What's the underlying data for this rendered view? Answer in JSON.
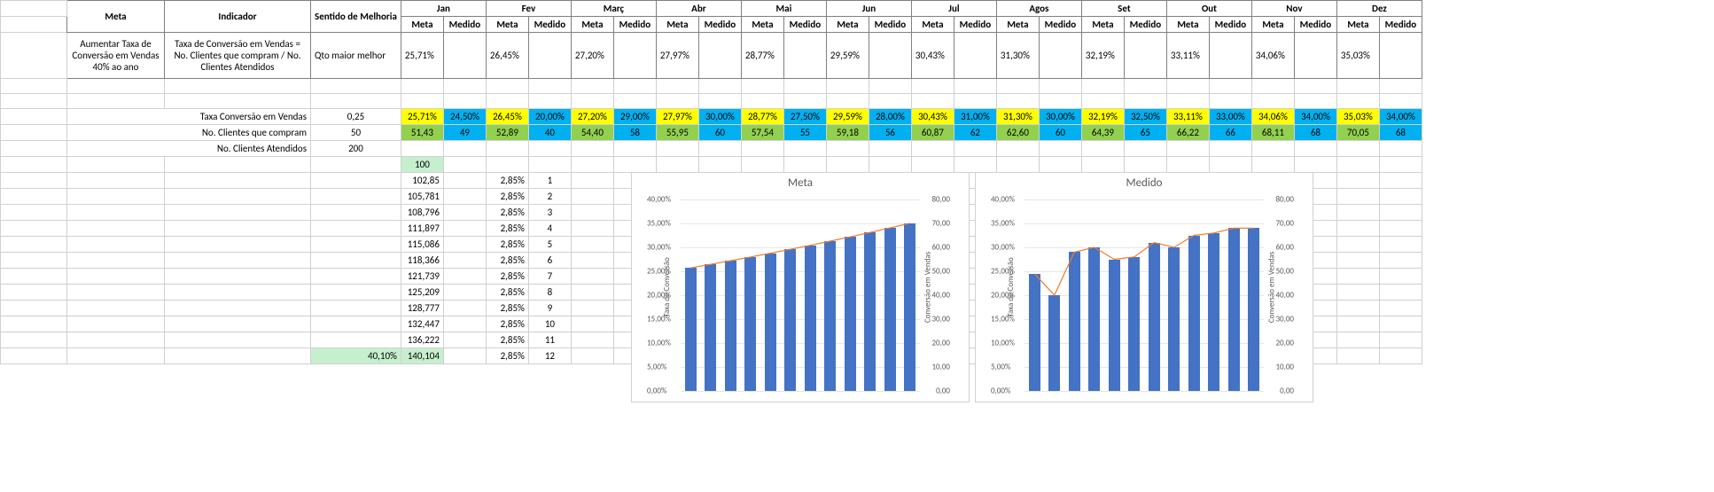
{
  "colors": {
    "yellow": "#ffff00",
    "cyan": "#00b0f0",
    "lime": "#92d050",
    "green": "#c6efce",
    "bar": "#4472c4",
    "line": "#ed7d31",
    "grid": "#e6e6e6"
  },
  "header": {
    "meta": "Meta",
    "indicador": "Indicador",
    "sentido": "Sentido de Melhoria",
    "months": [
      "Jan",
      "Fev",
      "Març",
      "Abr",
      "Mai",
      "Jun",
      "Jul",
      "Agos",
      "Set",
      "Out",
      "Nov",
      "Dez"
    ],
    "sub_meta": "Meta",
    "sub_medido": "Medido"
  },
  "row1": {
    "meta": "Aumentar Taxa de Conversão em Vendas 40% ao ano",
    "indicador": "Taxa de Conversão em Vendas = No. Clientes que compram / No. Clientes Atendidos",
    "sentido": "Qto maior melhor",
    "metas": [
      "25,71%",
      "26,45%",
      "27,20%",
      "27,97%",
      "28,77%",
      "29,59%",
      "30,43%",
      "31,30%",
      "32,19%",
      "33,11%",
      "34,06%",
      "35,03%"
    ]
  },
  "labels": {
    "taxa": "Taxa Conversão em Vendas",
    "compram": "No. Clientes que compram",
    "atendidos": "No. Clientes Atendidos"
  },
  "side": {
    "taxa": "0,25",
    "compram": "50",
    "atendidos": "200"
  },
  "taxa": {
    "meta": [
      "25,71%",
      "26,45%",
      "27,20%",
      "27,97%",
      "28,77%",
      "29,59%",
      "30,43%",
      "31,30%",
      "32,19%",
      "33,11%",
      "34,06%",
      "35,03%"
    ],
    "med": [
      "24,50%",
      "20,00%",
      "29,00%",
      "30,00%",
      "27,50%",
      "28,00%",
      "31,00%",
      "30,00%",
      "32,50%",
      "33,00%",
      "34,00%",
      "34,00%"
    ]
  },
  "compram": {
    "meta": [
      "51,43",
      "52,89",
      "54,40",
      "55,95",
      "57,54",
      "59,18",
      "60,87",
      "62,60",
      "64,39",
      "66,22",
      "68,11",
      "70,05"
    ],
    "med": [
      "49",
      "40",
      "58",
      "60",
      "55",
      "56",
      "62",
      "60",
      "65",
      "66",
      "68",
      "68"
    ]
  },
  "calc": {
    "start": "100",
    "rows": [
      [
        "102,85",
        "2,85%",
        "1"
      ],
      [
        "105,781",
        "2,85%",
        "2"
      ],
      [
        "108,796",
        "2,85%",
        "3"
      ],
      [
        "111,897",
        "2,85%",
        "4"
      ],
      [
        "115,086",
        "2,85%",
        "5"
      ],
      [
        "118,366",
        "2,85%",
        "6"
      ],
      [
        "121,739",
        "2,85%",
        "7"
      ],
      [
        "125,209",
        "2,85%",
        "8"
      ],
      [
        "128,777",
        "2,85%",
        "9"
      ],
      [
        "132,447",
        "2,85%",
        "10"
      ],
      [
        "136,222",
        "2,85%",
        "11"
      ],
      [
        "140,104",
        "2,85%",
        "12"
      ]
    ],
    "final": "40,10%"
  },
  "chart_meta": {
    "title": "Meta",
    "y1_title": "Taxa de Conversão",
    "y2_title": "Conversão em Vendas",
    "y1_ticks": [
      "0,00%",
      "5,00%",
      "10,00%",
      "15,00%",
      "20,00%",
      "25,00%",
      "30,00%",
      "35,00%",
      "40,00%"
    ],
    "y2_ticks": [
      "0,00",
      "10,00",
      "20,00",
      "30,00",
      "40,00",
      "50,00",
      "60,00",
      "70,00",
      "80,00"
    ],
    "y1_max": 40,
    "y2_max": 80,
    "line": [
      25.71,
      26.45,
      27.2,
      27.97,
      28.77,
      29.59,
      30.43,
      31.3,
      32.19,
      33.11,
      34.06,
      35.03
    ],
    "bars": [
      51.43,
      52.89,
      54.4,
      55.95,
      57.54,
      59.18,
      60.87,
      62.6,
      64.39,
      66.22,
      68.11,
      70.05
    ]
  },
  "chart_med": {
    "title": "Medido",
    "y1_title": "Taxa de Conversão",
    "y2_title": "Conversão em Vendas",
    "y1_ticks": [
      "0,00%",
      "5,00%",
      "10,00%",
      "15,00%",
      "20,00%",
      "25,00%",
      "30,00%",
      "35,00%",
      "40,00%"
    ],
    "y2_ticks": [
      "0,00",
      "10,00",
      "20,00",
      "30,00",
      "40,00",
      "50,00",
      "60,00",
      "70,00",
      "80,00"
    ],
    "y1_max": 40,
    "y2_max": 80,
    "line": [
      24.5,
      20,
      29,
      30,
      27.5,
      28,
      31,
      30,
      32.5,
      33,
      34,
      34
    ],
    "bars": [
      49,
      40,
      58,
      60,
      55,
      56,
      62,
      60,
      65,
      66,
      68,
      68
    ]
  }
}
